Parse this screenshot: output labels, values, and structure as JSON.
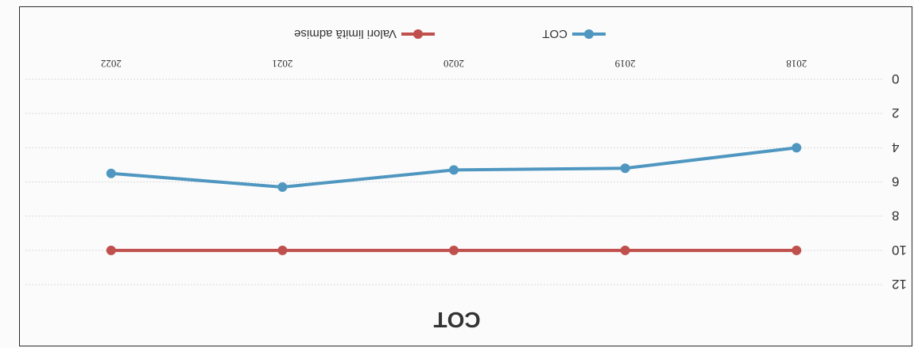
{
  "chart_data": {
    "type": "line",
    "title": "COT",
    "xlabel": "",
    "ylabel": "",
    "categories": [
      "2018",
      "2019",
      "2020",
      "2021",
      "2022"
    ],
    "ylim": [
      0,
      12
    ],
    "yticks": [
      "0",
      "2",
      "4",
      "6",
      "8",
      "10",
      "12"
    ],
    "grid": true,
    "legend_position": "bottom",
    "rotated_180": true,
    "series": [
      {
        "name": "COT",
        "color": "#4f97c0",
        "values": [
          4,
          5.2,
          5.3,
          6.3,
          5.5
        ]
      },
      {
        "name": "Valori limită admise",
        "color": "#c0504d",
        "values": [
          10,
          10,
          10,
          10,
          10
        ]
      }
    ]
  }
}
